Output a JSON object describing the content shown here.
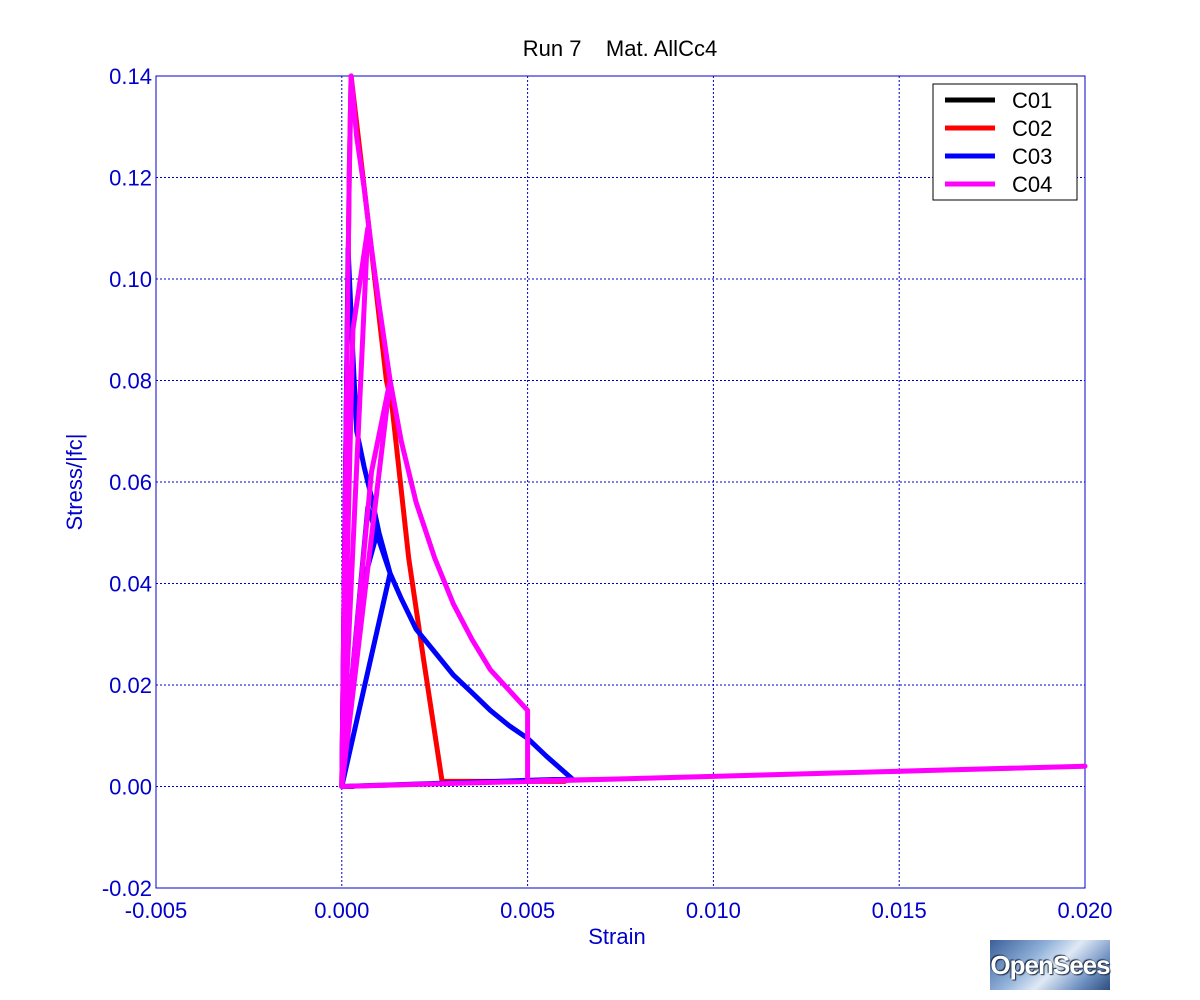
{
  "chart_data": {
    "type": "line",
    "title": "Run 7    Mat. AllCc4",
    "xlabel": "Strain",
    "ylabel": "Stress/|fc|",
    "xlim": [
      -0.005,
      0.02
    ],
    "ylim": [
      -0.02,
      0.14
    ],
    "xticks": [
      -0.005,
      0.0,
      0.005,
      0.01,
      0.015,
      0.02
    ],
    "xtick_labels": [
      "-0.005",
      "0.000",
      "0.005",
      "0.010",
      "0.015",
      "0.020"
    ],
    "yticks": [
      -0.02,
      0.0,
      0.02,
      0.04,
      0.06,
      0.08,
      0.1,
      0.12,
      0.14
    ],
    "ytick_labels": [
      "-0.02",
      "0.00",
      "0.02",
      "0.04",
      "0.06",
      "0.08",
      "0.10",
      "0.12",
      "0.14"
    ],
    "grid": true,
    "legend_position": "top-right",
    "series": [
      {
        "name": "C01",
        "color": "#000000",
        "x": [
          0.0,
          0.00017,
          0.0003,
          0.0003,
          0.0003
        ],
        "y": [
          0.0,
          0.0,
          0.0,
          0.0,
          0.0
        ]
      },
      {
        "name": "C02",
        "color": "#ff0000",
        "x": [
          0.0,
          0.0002,
          0.00025,
          0.0007,
          0.0012,
          0.00135,
          0.0018,
          0.0022,
          0.0027,
          0.0045,
          0.006
        ],
        "y": [
          0.0,
          0.12,
          0.14,
          0.112,
          0.08,
          0.075,
          0.045,
          0.025,
          0.001,
          0.001,
          0.001
        ]
      },
      {
        "name": "C03",
        "color": "#0000ff",
        "x": [
          0.0,
          0.00017,
          0.0003,
          0.0004,
          0.0006,
          0.0008,
          0.001,
          0.0013,
          0.0016,
          0.002,
          0.0025,
          0.003,
          0.0035,
          0.004,
          0.0045,
          0.005,
          0.0055,
          0.0062,
          0.0,
          0.0007,
          0.00095,
          0.00065,
          0.0,
          0.0013,
          0.0007
        ],
        "y": [
          0.0,
          0.106,
          0.085,
          0.07,
          0.063,
          0.057,
          0.05,
          0.042,
          0.037,
          0.031,
          0.0265,
          0.022,
          0.0185,
          0.015,
          0.012,
          0.0095,
          0.006,
          0.0015,
          0.0,
          0.055,
          0.05,
          0.042,
          0.0,
          0.042,
          0.055
        ]
      },
      {
        "name": "C04",
        "color": "#ff00ff",
        "x": [
          0.0,
          0.0002,
          0.00025,
          0.0004,
          0.0006,
          0.0008,
          0.001,
          0.0013,
          0.0016,
          0.002,
          0.0025,
          0.003,
          0.0035,
          0.004,
          0.0045,
          0.005,
          0.005,
          0.0055,
          0.007,
          0.01,
          0.013,
          0.016,
          0.02,
          0.0,
          0.0007,
          0.0003,
          0.0,
          0.0013,
          0.0008,
          0.0
        ],
        "y": [
          0.0,
          0.12,
          0.14,
          0.128,
          0.118,
          0.106,
          0.095,
          0.08,
          0.068,
          0.056,
          0.045,
          0.036,
          0.029,
          0.023,
          0.019,
          0.015,
          0.001,
          0.0012,
          0.0014,
          0.002,
          0.0026,
          0.0032,
          0.004,
          0.0,
          0.11,
          0.09,
          0.0,
          0.08,
          0.062,
          0.0
        ]
      }
    ]
  },
  "logo": {
    "text": "OpenSees"
  }
}
